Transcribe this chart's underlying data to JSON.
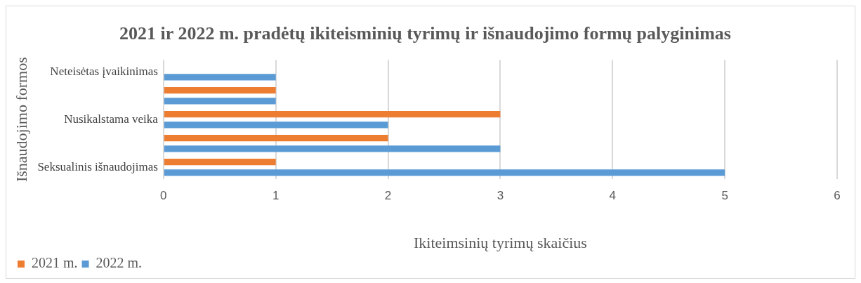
{
  "chart_data": {
    "type": "bar",
    "orientation": "horizontal",
    "title": "2021 ir 2022 m. pradėtų ikiteisminių tyrimų ir išnaudojimo formų palyginimas",
    "xlabel": "Ikiteimsinių tyrimų skaičius",
    "ylabel": "Išnaudojimo formos",
    "categories": [
      "Neteisėtas įvaikinimas",
      null,
      "Nusikalstama veika",
      null,
      "Seksualinis išnaudojimas"
    ],
    "series": [
      {
        "name": "2021 m.",
        "color": "#ed7d31",
        "values": [
          null,
          1,
          3,
          2,
          1
        ]
      },
      {
        "name": "2022 m.",
        "color": "#5b9bd5",
        "values": [
          1,
          1,
          2,
          3,
          5
        ]
      }
    ],
    "xlim": [
      0,
      6
    ],
    "xticks": [
      0,
      1,
      2,
      3,
      4,
      5,
      6
    ],
    "grid": "x",
    "legend": "bottom left"
  }
}
